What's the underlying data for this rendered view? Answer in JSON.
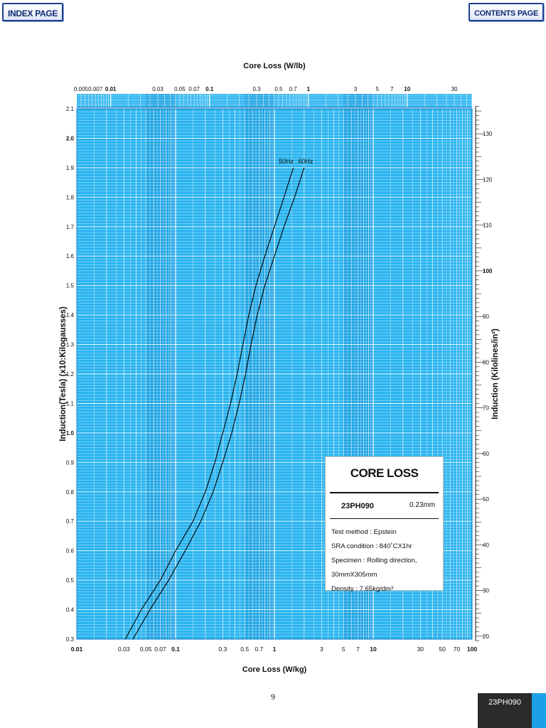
{
  "nav": {
    "index_label": "INDEX PAGE",
    "contents_label": "CONTENTS PAGE"
  },
  "colors": {
    "grid_background": "#2ab4ef",
    "grid_band": "#1a9fe0",
    "grid_lines": "#ffffff",
    "curve": "#000000",
    "footer": "#2b2b2b",
    "footer_accent": "#1da1e6"
  },
  "infobox": {
    "title": "CORE LOSS",
    "grade": "23PH090",
    "thickness": "0.23mm",
    "lines": [
      "Test method : Epstein",
      "SRA condition : 840˚CX1hr",
      "Specimen : Rolling direction, 30mmX305mm",
      "Density : 7.65kg/dm³"
    ]
  },
  "page_number": "9",
  "footer_label": "23PH090",
  "chart_data": {
    "type": "line",
    "title": "",
    "xlabel": "Core Loss (W/kg)",
    "x2label": "Core Loss (W/lb)",
    "ylabel": "Induction(Tesla) (x10:Kilogausses)",
    "y2label": "Induction (Kilolines/in²)",
    "x_scale": "log",
    "xlim": [
      0.01,
      100
    ],
    "ylim": [
      0.3,
      2.1
    ],
    "x_ticks": [
      {
        "v": 0.01,
        "t": "0.01",
        "b": true
      },
      {
        "v": 0.03,
        "t": "0.03",
        "b": false
      },
      {
        "v": 0.05,
        "t": "0.05",
        "b": false
      },
      {
        "v": 0.07,
        "t": "0.07",
        "b": false
      },
      {
        "v": 0.1,
        "t": "0.1",
        "b": true
      },
      {
        "v": 0.3,
        "t": "0.3",
        "b": false
      },
      {
        "v": 0.5,
        "t": "0.5",
        "b": false
      },
      {
        "v": 0.7,
        "t": "0.7",
        "b": false
      },
      {
        "v": 1,
        "t": "1",
        "b": true
      },
      {
        "v": 3,
        "t": "3",
        "b": false
      },
      {
        "v": 5,
        "t": "5",
        "b": false
      },
      {
        "v": 7,
        "t": "7",
        "b": false
      },
      {
        "v": 10,
        "t": "10",
        "b": true
      },
      {
        "v": 30,
        "t": "30",
        "b": false
      },
      {
        "v": 50,
        "t": "50",
        "b": false
      },
      {
        "v": 70,
        "t": "70",
        "b": false
      },
      {
        "v": 100,
        "t": "100",
        "b": true
      }
    ],
    "x2_ticks": [
      {
        "v": 0.005,
        "t": "0.005",
        "b": false
      },
      {
        "v": 0.007,
        "t": "0.007",
        "b": false
      },
      {
        "v": 0.01,
        "t": "0.01",
        "b": true
      },
      {
        "v": 0.03,
        "t": "0.03",
        "b": false
      },
      {
        "v": 0.05,
        "t": "0.05",
        "b": false
      },
      {
        "v": 0.07,
        "t": "0.07",
        "b": false
      },
      {
        "v": 0.1,
        "t": "0.1",
        "b": true
      },
      {
        "v": 0.3,
        "t": "0.3",
        "b": false
      },
      {
        "v": 0.5,
        "t": "0.5",
        "b": false
      },
      {
        "v": 0.7,
        "t": "0.7",
        "b": false
      },
      {
        "v": 1,
        "t": "1",
        "b": true
      },
      {
        "v": 3,
        "t": "3",
        "b": false
      },
      {
        "v": 5,
        "t": "5",
        "b": false
      },
      {
        "v": 7,
        "t": "7",
        "b": false
      },
      {
        "v": 10,
        "t": "10",
        "b": true
      },
      {
        "v": 30,
        "t": "30",
        "b": false
      }
    ],
    "y_ticks": [
      {
        "v": 0.3,
        "t": "0.3",
        "b": false
      },
      {
        "v": 0.4,
        "t": "0.4",
        "b": false
      },
      {
        "v": 0.5,
        "t": "0.5",
        "b": false
      },
      {
        "v": 0.6,
        "t": "0.6",
        "b": false
      },
      {
        "v": 0.7,
        "t": "0.7",
        "b": false
      },
      {
        "v": 0.8,
        "t": "0.8",
        "b": false
      },
      {
        "v": 0.9,
        "t": "0.9",
        "b": false
      },
      {
        "v": 1.0,
        "t": "1.0",
        "b": true
      },
      {
        "v": 1.1,
        "t": "1.1",
        "b": false
      },
      {
        "v": 1.2,
        "t": "1.2",
        "b": false
      },
      {
        "v": 1.3,
        "t": "1.3",
        "b": false
      },
      {
        "v": 1.4,
        "t": "1.4",
        "b": false
      },
      {
        "v": 1.5,
        "t": "1.5",
        "b": false
      },
      {
        "v": 1.6,
        "t": "1.6",
        "b": false
      },
      {
        "v": 1.7,
        "t": "1.7",
        "b": false
      },
      {
        "v": 1.8,
        "t": "1.8",
        "b": false
      },
      {
        "v": 1.9,
        "t": "1.9",
        "b": false
      },
      {
        "v": 2.0,
        "t": "2.0",
        "b": true
      },
      {
        "v": 2.1,
        "t": "2.1",
        "b": false
      }
    ],
    "y2_ticks": [
      {
        "v": 20,
        "t": "20",
        "b": false
      },
      {
        "v": 30,
        "t": "30",
        "b": false
      },
      {
        "v": 40,
        "t": "40",
        "b": false
      },
      {
        "v": 50,
        "t": "50",
        "b": false
      },
      {
        "v": 60,
        "t": "60",
        "b": false
      },
      {
        "v": 70,
        "t": "70",
        "b": false
      },
      {
        "v": 80,
        "t": "80",
        "b": false
      },
      {
        "v": 90,
        "t": "90",
        "b": false
      },
      {
        "v": 100,
        "t": "100",
        "b": true
      },
      {
        "v": 110,
        "t": "110",
        "b": false
      },
      {
        "v": 120,
        "t": "120",
        "b": false
      },
      {
        "v": 130,
        "t": "130",
        "b": false
      }
    ],
    "series": [
      {
        "name": "50Hz",
        "x": [
          0.031,
          0.045,
          0.07,
          0.1,
          0.15,
          0.2,
          0.25,
          0.3,
          0.36,
          0.42,
          0.48,
          0.55,
          0.65,
          0.8,
          1.0,
          1.25,
          1.55
        ],
        "y": [
          0.3,
          0.4,
          0.5,
          0.6,
          0.7,
          0.8,
          0.9,
          1.0,
          1.1,
          1.2,
          1.3,
          1.4,
          1.5,
          1.6,
          1.7,
          1.8,
          1.9
        ]
      },
      {
        "name": "60Hz",
        "x": [
          0.037,
          0.055,
          0.085,
          0.125,
          0.18,
          0.24,
          0.3,
          0.37,
          0.44,
          0.51,
          0.58,
          0.67,
          0.8,
          1.0,
          1.25,
          1.6,
          2.0
        ],
        "y": [
          0.3,
          0.4,
          0.5,
          0.6,
          0.7,
          0.8,
          0.9,
          1.0,
          1.1,
          1.2,
          1.3,
          1.4,
          1.5,
          1.6,
          1.7,
          1.8,
          1.9
        ]
      }
    ]
  }
}
